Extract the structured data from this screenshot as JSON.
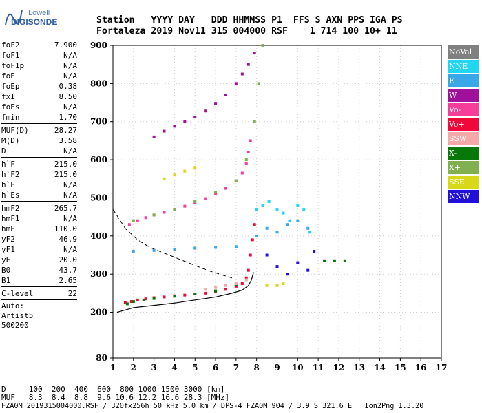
{
  "logo": {
    "line1": "Lowell",
    "line2": "DIGISONDE"
  },
  "header": {
    "line1": "Station   YYYY DAY   DDD HHMMSS P1  FFS S AXN PPS IGA PS",
    "line2": "Fortaleza 2019 Nov11 315 004000 RSF    1 714 100 10+ 11"
  },
  "params": {
    "group1": [
      {
        "label": "foF2",
        "value": "7.900"
      },
      {
        "label": "foF1",
        "value": "N/A"
      },
      {
        "label": "foF1p",
        "value": "N/A"
      },
      {
        "label": "foE",
        "value": "N/A"
      },
      {
        "label": "foEp",
        "value": "0.38"
      },
      {
        "label": "fxI",
        "value": "8.50"
      },
      {
        "label": "foEs",
        "value": "N/A"
      },
      {
        "label": "fmin",
        "value": "1.70"
      }
    ],
    "group2": [
      {
        "label": "MUF(D)",
        "value": "28.27"
      },
      {
        "label": "M(D)",
        "value": "3.58"
      },
      {
        "label": "D",
        "value": "N/A"
      }
    ],
    "group3": [
      {
        "label": "h`F",
        "value": "215.0"
      },
      {
        "label": "h`F2",
        "value": "215.0"
      },
      {
        "label": "h`E",
        "value": "N/A"
      },
      {
        "label": "h`Es",
        "value": "N/A"
      }
    ],
    "group4": [
      {
        "label": "hmF2",
        "value": "265.7"
      },
      {
        "label": "hmF1",
        "value": "N/A"
      },
      {
        "label": "hmE",
        "value": "110.0"
      },
      {
        "label": "yF2",
        "value": "46.9"
      },
      {
        "label": "yF1",
        "value": "N/A"
      },
      {
        "label": "yE",
        "value": "20.0"
      },
      {
        "label": "B0",
        "value": "43.7"
      },
      {
        "label": "B1",
        "value": "2.65"
      }
    ],
    "group5": [
      {
        "label": "C-level",
        "value": "22"
      }
    ],
    "auto": [
      "Auto:",
      "Artist5",
      "500200"
    ]
  },
  "legend": [
    {
      "label": "NoVal",
      "color": "#808080"
    },
    {
      "label": "NNE",
      "color": "#22d5f0"
    },
    {
      "label": "E",
      "color": "#3aa8e8"
    },
    {
      "label": "W",
      "color": "#a0109a"
    },
    {
      "label": "Vo-",
      "color": "#f43e9a"
    },
    {
      "label": "Vo+",
      "color": "#f0083a"
    },
    {
      "label": "SSW",
      "color": "#f4a8a8"
    },
    {
      "label": "X-",
      "color": "#087808"
    },
    {
      "label": "X+",
      "color": "#80b050"
    },
    {
      "label": "SSE",
      "color": "#d8d818"
    },
    {
      "label": "NNW",
      "color": "#2010d8"
    }
  ],
  "footer": {
    "line1": "D     100  200  400  600  800 1000 1500 3000 [km]",
    "line2": "MUF   8.3  8.4  8.8  9.6 10.6 12.2 16.6 28.3 [MHz]",
    "line3": "FZA0M_2019315004000.RSF / 320fx256h 50 kHz 5.0 km / DPS-4 FZA0M 904 / 3.9 S 321.6 E   Ion2Png 1.3.20"
  },
  "chart_data": {
    "type": "scatter",
    "title": "",
    "xlabel": "",
    "ylabel": "",
    "xlim": [
      1,
      17
    ],
    "ylim": [
      80,
      900
    ],
    "x_ticks": [
      1,
      2,
      3,
      4,
      5,
      6,
      7,
      8,
      9,
      10,
      11,
      12,
      13,
      14,
      15,
      16,
      17
    ],
    "y_ticks": [
      80,
      200,
      300,
      400,
      500,
      600,
      700,
      800,
      900
    ],
    "grid": true,
    "series": [
      {
        "name": "Vo+",
        "color": "#f0083a",
        "x": [
          1.6,
          1.9,
          2.2,
          2.6,
          3.0,
          3.5,
          4.0,
          4.5,
          5.0,
          5.5,
          6.0,
          6.5,
          7.0,
          7.3,
          7.5,
          7.6,
          7.7,
          7.8,
          7.9
        ],
        "y": [
          225,
          228,
          232,
          235,
          238,
          240,
          243,
          245,
          248,
          250,
          255,
          260,
          268,
          275,
          290,
          310,
          350,
          390,
          430
        ]
      },
      {
        "name": "Vo-",
        "color": "#f43e9a",
        "x": [
          1.8,
          2.2,
          2.6,
          3.0,
          3.5,
          4.0,
          4.5,
          5.0,
          5.5,
          6.0,
          6.5,
          7.0,
          7.3,
          7.5,
          7.6,
          7.7
        ],
        "y": [
          430,
          440,
          448,
          455,
          462,
          470,
          478,
          488,
          498,
          510,
          525,
          545,
          565,
          590,
          620,
          650
        ]
      },
      {
        "name": "W",
        "color": "#a0109a",
        "x": [
          3.0,
          3.5,
          4.0,
          4.5,
          5.0,
          5.5,
          6.0,
          6.5,
          7.0,
          7.3,
          7.6,
          7.9
        ],
        "y": [
          660,
          675,
          688,
          700,
          712,
          728,
          748,
          770,
          800,
          825,
          850,
          880
        ]
      },
      {
        "name": "E",
        "color": "#3aa8e8",
        "x": [
          2.0,
          3.0,
          4.0,
          5.0,
          6.0,
          7.0,
          8.0,
          8.5,
          9.0,
          9.5,
          10.0,
          10.5
        ],
        "y": [
          360,
          362,
          365,
          368,
          370,
          372,
          400,
          420,
          410,
          430,
          440,
          420
        ]
      },
      {
        "name": "NNE",
        "color": "#22d5f0",
        "x": [
          8.0,
          8.3,
          8.6,
          9.0,
          9.3,
          9.6,
          10.0,
          10.3,
          10.6
        ],
        "y": [
          470,
          480,
          490,
          470,
          460,
          440,
          480,
          470,
          410
        ]
      },
      {
        "name": "NNW",
        "color": "#2010d8",
        "x": [
          8.5,
          9.0,
          9.5,
          10.0,
          10.5,
          10.8
        ],
        "y": [
          350,
          320,
          300,
          330,
          310,
          360
        ]
      },
      {
        "name": "X-",
        "color": "#087808",
        "x": [
          1.7,
          2.0,
          2.5,
          3.0,
          4.0,
          5.0,
          6.0,
          7.0,
          11.3,
          11.8,
          12.3
        ],
        "y": [
          222,
          228,
          232,
          236,
          242,
          248,
          256,
          272,
          335,
          335,
          335
        ]
      },
      {
        "name": "X+",
        "color": "#80b050",
        "x": [
          2.0,
          3.0,
          4.0,
          5.0,
          6.0,
          7.0,
          7.5,
          7.9,
          8.1,
          8.3
        ],
        "y": [
          440,
          455,
          470,
          490,
          515,
          545,
          600,
          700,
          800,
          900
        ]
      },
      {
        "name": "SSE",
        "color": "#d8d818",
        "x": [
          3.5,
          4.0,
          4.5,
          5.0,
          8.5,
          9.0,
          9.3
        ],
        "y": [
          550,
          560,
          570,
          580,
          270,
          270,
          275
        ]
      },
      {
        "name": "SSW",
        "color": "#f4a8a8",
        "x": [
          5.5,
          6.0,
          6.5,
          7.0,
          7.5
        ],
        "y": [
          260,
          265,
          270,
          275,
          285
        ]
      }
    ],
    "profile_line": {
      "x": [
        1.2,
        2.0,
        3.0,
        4.0,
        5.0,
        6.0,
        6.8,
        7.3,
        7.6,
        7.75,
        7.85
      ],
      "y": [
        200,
        212,
        218,
        224,
        232,
        240,
        250,
        258,
        270,
        285,
        305
      ]
    },
    "muf_dashed_line": {
      "x": [
        1.0,
        1.6,
        2.2,
        2.8,
        3.5,
        4.2,
        4.9,
        5.6,
        6.2,
        6.8
      ],
      "y": [
        470,
        420,
        390,
        370,
        355,
        340,
        325,
        310,
        300,
        290
      ]
    }
  }
}
